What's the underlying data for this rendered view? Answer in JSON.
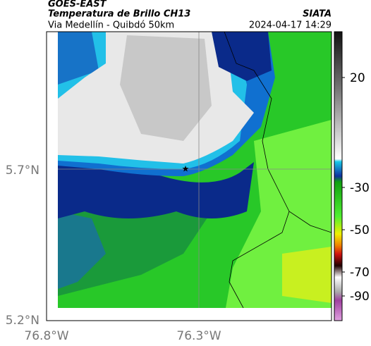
{
  "header": {
    "satellite": "GOES-EAST",
    "product": "Temperatura de Brillo CH13",
    "route": "Via Medellín - Quibdó 50km",
    "source": "SIATA",
    "timestamp": "2024-04-17 14:29"
  },
  "axes": {
    "lat_ticks": [
      "5.7°N",
      "5.2°N"
    ],
    "lon_ticks": [
      "76.8°W",
      "76.3°W"
    ]
  },
  "colorbar": {
    "ticks": [
      20,
      -30,
      -50,
      -70,
      -90
    ]
  }
}
